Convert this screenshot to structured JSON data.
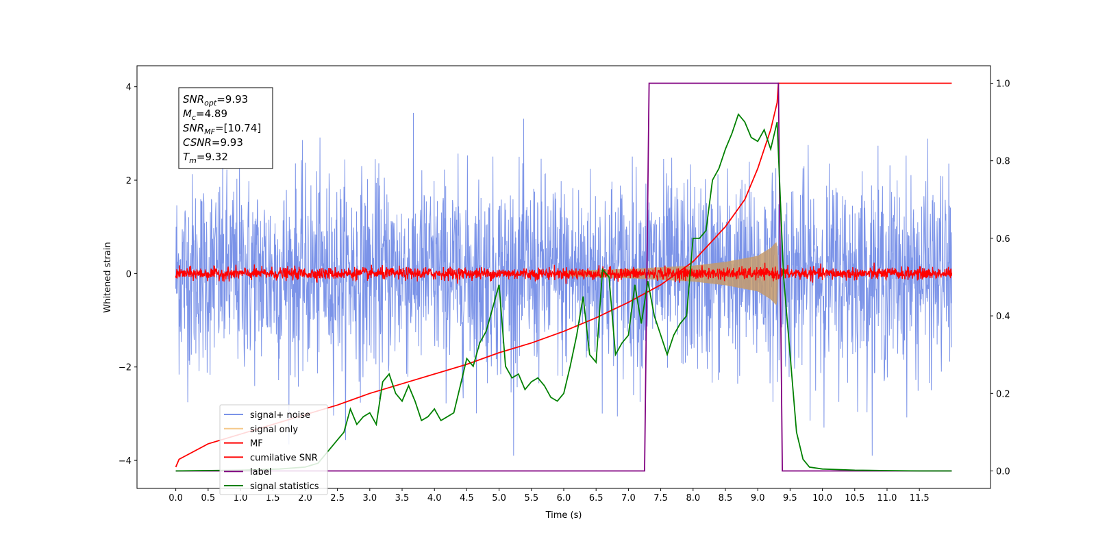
{
  "chart_data": {
    "type": "line",
    "xlabel": "Time (s)",
    "ylabel_left": "Whitened strain",
    "ylabel_right": "",
    "xlim": [
      -0.6,
      12.6
    ],
    "ylim_left": [
      -4.6,
      4.45
    ],
    "ylim_right": [
      -0.045,
      1.045
    ],
    "xticks": [
      "0.0",
      "0.5",
      "1.0",
      "1.5",
      "2.0",
      "2.5",
      "3.0",
      "3.5",
      "4.0",
      "4.5",
      "5.0",
      "5.5",
      "6.0",
      "6.5",
      "7.0",
      "7.5",
      "8.0",
      "8.5",
      "9.0",
      "9.5",
      "10.0",
      "10.5",
      "11.0",
      "11.5"
    ],
    "yticks_left": [
      "4",
      "2",
      "0",
      "−2",
      "−4"
    ],
    "yticks_right": [
      "1.0",
      "0.8",
      "0.6",
      "0.4",
      "0.2",
      "0.0"
    ],
    "grid": false,
    "legend_position": "bottom-left",
    "info_box": [
      {
        "base": "SNR",
        "sub": "opt",
        "value": "=9.93"
      },
      {
        "base": "M",
        "sub": "c",
        "value": "=4.89"
      },
      {
        "base": "SNR",
        "sub": "MF",
        "value": "=[10.74]"
      },
      {
        "base": "CSNR",
        "sub": "",
        "value": "=9.93"
      },
      {
        "base": "T",
        "sub": "m",
        "value": "=9.32"
      }
    ],
    "series": [
      {
        "name": "signal+ noise",
        "color": "#7b93e8",
        "axis": "left",
        "kind": "noise",
        "x_range": [
          0,
          12
        ],
        "envelope": 2.0
      },
      {
        "name": "signal only",
        "color": "#f5c98a",
        "axis": "left",
        "kind": "chirp",
        "x_range": [
          6.0,
          9.32
        ],
        "envelope_points": [
          [
            6.0,
            0.06
          ],
          [
            7.0,
            0.1
          ],
          [
            8.0,
            0.17
          ],
          [
            8.5,
            0.25
          ],
          [
            9.0,
            0.38
          ],
          [
            9.2,
            0.55
          ],
          [
            9.3,
            0.7
          ],
          [
            9.32,
            0.0
          ]
        ]
      },
      {
        "name": "MF",
        "color": "#ff0000",
        "axis": "left",
        "kind": "noise",
        "x_range": [
          0,
          12
        ],
        "envelope": 0.13
      },
      {
        "name": "cumilative SNR",
        "color": "#ff0000",
        "axis": "right",
        "x": [
          0.0,
          0.05,
          0.5,
          1.0,
          1.5,
          2.0,
          2.5,
          3.0,
          3.5,
          4.0,
          4.5,
          5.0,
          5.5,
          6.0,
          6.5,
          7.0,
          7.5,
          8.0,
          8.5,
          8.8,
          9.0,
          9.1,
          9.2,
          9.3,
          9.32,
          12.0
        ],
        "y": [
          0.01,
          0.03,
          0.07,
          0.095,
          0.12,
          0.145,
          0.17,
          0.2,
          0.225,
          0.25,
          0.275,
          0.305,
          0.33,
          0.36,
          0.395,
          0.435,
          0.48,
          0.54,
          0.63,
          0.7,
          0.78,
          0.83,
          0.88,
          0.95,
          1.0,
          1.0
        ]
      },
      {
        "name": "label",
        "color": "#800080",
        "axis": "right",
        "x": [
          0.0,
          7.25,
          7.32,
          9.32,
          9.38,
          12.0
        ],
        "y": [
          0.0,
          0.0,
          1.0,
          1.0,
          0.0,
          0.0
        ]
      },
      {
        "name": "signal statistics",
        "color": "#008000",
        "axis": "right",
        "x": [
          0.0,
          0.4,
          1.0,
          1.6,
          2.0,
          2.2,
          2.35,
          2.5,
          2.6,
          2.7,
          2.8,
          2.9,
          3.0,
          3.1,
          3.2,
          3.3,
          3.4,
          3.5,
          3.6,
          3.7,
          3.8,
          3.9,
          4.0,
          4.1,
          4.2,
          4.3,
          4.4,
          4.5,
          4.6,
          4.7,
          4.8,
          4.9,
          5.0,
          5.1,
          5.2,
          5.3,
          5.4,
          5.5,
          5.6,
          5.7,
          5.8,
          5.9,
          6.0,
          6.1,
          6.2,
          6.3,
          6.4,
          6.5,
          6.6,
          6.7,
          6.8,
          6.9,
          7.0,
          7.1,
          7.2,
          7.3,
          7.4,
          7.5,
          7.6,
          7.7,
          7.8,
          7.9,
          8.0,
          8.1,
          8.2,
          8.3,
          8.4,
          8.5,
          8.6,
          8.7,
          8.8,
          8.9,
          9.0,
          9.1,
          9.2,
          9.3,
          9.4,
          9.5,
          9.6,
          9.7,
          9.8,
          10.0,
          10.5,
          11.0,
          11.5,
          12.0
        ],
        "y": [
          0.0,
          0.001,
          0.002,
          0.005,
          0.01,
          0.02,
          0.05,
          0.08,
          0.1,
          0.16,
          0.12,
          0.14,
          0.15,
          0.12,
          0.23,
          0.25,
          0.2,
          0.18,
          0.22,
          0.18,
          0.13,
          0.14,
          0.16,
          0.13,
          0.14,
          0.15,
          0.22,
          0.29,
          0.27,
          0.33,
          0.36,
          0.42,
          0.48,
          0.27,
          0.24,
          0.25,
          0.21,
          0.23,
          0.24,
          0.22,
          0.19,
          0.18,
          0.2,
          0.27,
          0.35,
          0.45,
          0.3,
          0.28,
          0.52,
          0.5,
          0.3,
          0.33,
          0.35,
          0.48,
          0.38,
          0.49,
          0.4,
          0.35,
          0.3,
          0.35,
          0.38,
          0.4,
          0.6,
          0.6,
          0.62,
          0.75,
          0.78,
          0.83,
          0.87,
          0.92,
          0.9,
          0.86,
          0.85,
          0.88,
          0.83,
          0.9,
          0.5,
          0.3,
          0.1,
          0.03,
          0.01,
          0.005,
          0.002,
          0.001,
          0.0,
          0.0
        ]
      }
    ]
  }
}
